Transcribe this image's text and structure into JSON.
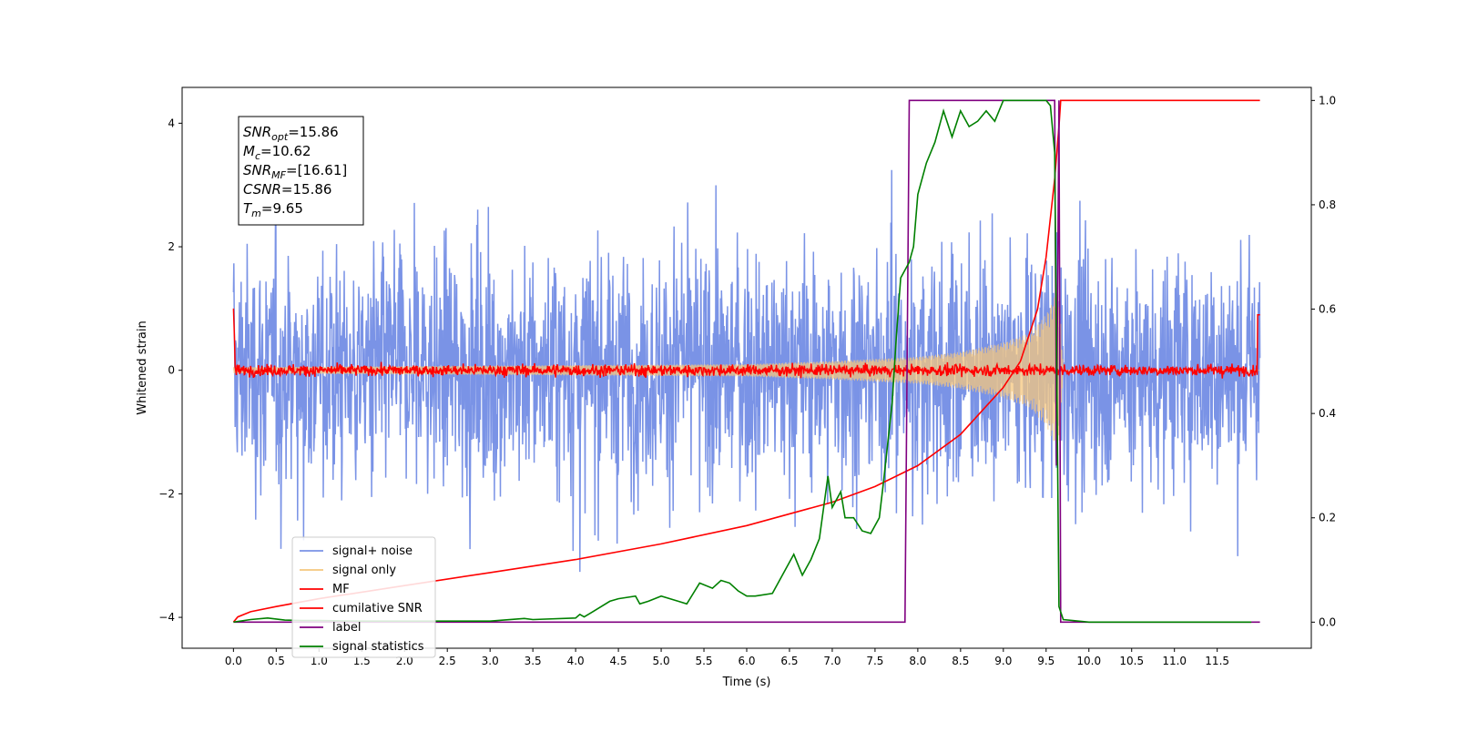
{
  "chart_data": {
    "type": "line",
    "xlabel": "Time (s)",
    "ylabel": "Whitened strain",
    "xlim": [
      -0.6,
      12.6
    ],
    "ylim": [
      -4.5,
      4.58
    ],
    "y2lim": [
      -0.05,
      1.025
    ],
    "xticks": [
      0.0,
      0.5,
      1.0,
      1.5,
      2.0,
      2.5,
      3.0,
      3.5,
      4.0,
      4.5,
      5.0,
      5.5,
      6.0,
      6.5,
      7.0,
      7.5,
      8.0,
      8.5,
      9.0,
      9.5,
      10.0,
      10.5,
      11.0,
      11.5
    ],
    "xtick_labels": [
      "0.0",
      "0.5",
      "1.0",
      "1.5",
      "2.0",
      "2.5",
      "3.0",
      "3.5",
      "4.0",
      "4.5",
      "5.0",
      "5.5",
      "6.0",
      "6.5",
      "7.0",
      "7.5",
      "8.0",
      "8.5",
      "9.0",
      "9.5",
      "10.0",
      "10.5",
      "11.0",
      "11.5"
    ],
    "yticks": [
      -4,
      -2,
      0,
      2,
      4
    ],
    "ytick_labels": [
      "−4",
      "−2",
      "0",
      "2",
      "4"
    ],
    "y2ticks": [
      0.0,
      0.2,
      0.4,
      0.6,
      0.8,
      1.0
    ],
    "y2tick_labels": [
      "0.0",
      "0.2",
      "0.4",
      "0.6",
      "0.8",
      "1.0"
    ],
    "grid": false,
    "legend_position": "lower-left",
    "annotation": {
      "lines": [
        {
          "base": "SNR",
          "sub": "opt",
          "rest": "=15.86"
        },
        {
          "base": "M",
          "sub": "c",
          "rest": "=10.62"
        },
        {
          "base": "SNR",
          "sub": "MF",
          "rest": "=[16.61]"
        },
        {
          "base": "CSNR",
          "sub": "",
          "rest": "=15.86"
        },
        {
          "base": "T",
          "sub": "m",
          "rest": "=9.65"
        }
      ]
    },
    "series": [
      {
        "name": "signal+ noise",
        "color": "#7a93e6",
        "axis": "left",
        "style": "dense noise, approx amplitude ±2.5 with spikes to ±3.4, t from 0.0 to 12.0"
      },
      {
        "name": "signal only",
        "color": "#f5c77e",
        "axis": "left",
        "style": "chirp growing from 0 to ±1.4 at t=9.65, then zero",
        "envelope": {
          "x": [
            0.0,
            6.0,
            7.0,
            8.0,
            8.5,
            9.0,
            9.3,
            9.5,
            9.6,
            9.65,
            9.7,
            12.0
          ],
          "y": [
            0.05,
            0.1,
            0.15,
            0.22,
            0.3,
            0.45,
            0.6,
            0.9,
            1.2,
            1.4,
            0.0,
            0.0
          ]
        }
      },
      {
        "name": "MF",
        "color": "#ff0000",
        "axis": "left",
        "style": "noise around 0 with amplitude ~0.12, t from 0.0 to 12.0"
      },
      {
        "name": "cumilative SNR",
        "color": "#ff0000",
        "axis": "right",
        "x": [
          0.0,
          0.05,
          0.2,
          0.5,
          1.0,
          2.0,
          3.0,
          4.0,
          5.0,
          6.0,
          7.0,
          7.5,
          8.0,
          8.5,
          9.0,
          9.2,
          9.4,
          9.5,
          9.6,
          9.65,
          9.67,
          12.0
        ],
        "y": [
          0.0,
          0.01,
          0.02,
          0.03,
          0.045,
          0.07,
          0.095,
          0.12,
          0.15,
          0.185,
          0.23,
          0.26,
          0.3,
          0.36,
          0.45,
          0.5,
          0.6,
          0.7,
          0.85,
          0.95,
          1.0,
          1.0
        ]
      },
      {
        "name": "label",
        "color": "#800080",
        "axis": "right",
        "x": [
          0.0,
          7.85,
          7.9,
          9.6,
          9.62,
          9.65,
          9.67,
          12.0
        ],
        "y": [
          0.0,
          0.0,
          1.0,
          1.0,
          0.3,
          1.0,
          0.0,
          0.0
        ]
      },
      {
        "name": "signal statistics",
        "color": "#008000",
        "axis": "right",
        "x": [
          0.0,
          0.2,
          0.4,
          0.6,
          0.8,
          1.0,
          1.5,
          2.0,
          2.5,
          3.0,
          3.4,
          3.5,
          4.0,
          4.05,
          4.1,
          4.2,
          4.4,
          4.5,
          4.7,
          4.75,
          4.85,
          5.0,
          5.2,
          5.3,
          5.45,
          5.6,
          5.7,
          5.8,
          5.9,
          6.0,
          6.1,
          6.3,
          6.45,
          6.55,
          6.65,
          6.75,
          6.85,
          6.95,
          7.0,
          7.1,
          7.15,
          7.25,
          7.35,
          7.45,
          7.55,
          7.6,
          7.7,
          7.75,
          7.8,
          7.9,
          7.95,
          8.0,
          8.1,
          8.2,
          8.3,
          8.4,
          8.5,
          8.6,
          8.7,
          8.8,
          8.9,
          9.0,
          9.2,
          9.4,
          9.5,
          9.55,
          9.6,
          9.65,
          9.7,
          10.0,
          11.0,
          11.9
        ],
        "y": [
          0.0,
          0.005,
          0.008,
          0.004,
          0.003,
          0.003,
          0.002,
          0.002,
          0.002,
          0.002,
          0.007,
          0.005,
          0.008,
          0.015,
          0.01,
          0.02,
          0.04,
          0.045,
          0.05,
          0.035,
          0.04,
          0.05,
          0.04,
          0.035,
          0.075,
          0.065,
          0.08,
          0.075,
          0.06,
          0.05,
          0.05,
          0.055,
          0.1,
          0.13,
          0.09,
          0.12,
          0.16,
          0.28,
          0.22,
          0.25,
          0.2,
          0.2,
          0.175,
          0.17,
          0.2,
          0.27,
          0.42,
          0.55,
          0.66,
          0.69,
          0.72,
          0.82,
          0.88,
          0.92,
          0.98,
          0.93,
          0.98,
          0.95,
          0.96,
          0.98,
          0.96,
          1.0,
          1.0,
          1.0,
          1.0,
          0.99,
          0.9,
          0.03,
          0.005,
          0.0,
          0.0,
          0.0
        ]
      }
    ]
  }
}
